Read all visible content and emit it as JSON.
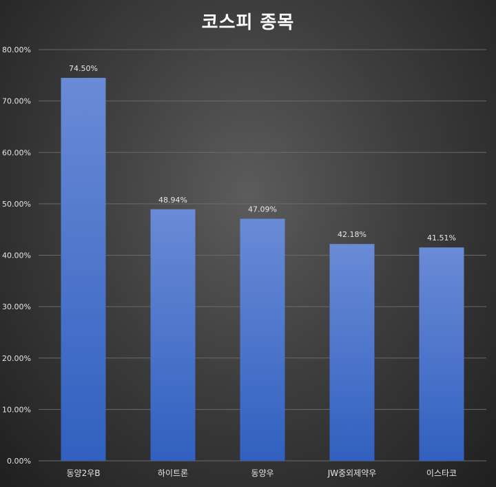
{
  "chart_data": {
    "type": "bar",
    "title": "코스피 종목",
    "categories": [
      "동양2우B",
      "하이트론",
      "동양우",
      "JW중외제약우",
      "이스타코"
    ],
    "values": [
      74.5,
      48.94,
      47.09,
      42.18,
      41.51
    ],
    "data_labels": [
      "74.50%",
      "48.94%",
      "47.09%",
      "42.18%",
      "41.51%"
    ],
    "ylim": [
      0,
      80
    ],
    "yticks": [
      0,
      10,
      20,
      30,
      40,
      50,
      60,
      70,
      80
    ],
    "ytick_labels": [
      "0.00%",
      "10.00%",
      "20.00%",
      "30.00%",
      "40.00%",
      "50.00%",
      "60.00%",
      "70.00%",
      "80.00%"
    ],
    "grid": true,
    "legend": "none",
    "colors": {
      "bar_top": "#6a8bd6",
      "bar_bottom": "#3160c0",
      "text": "#e6e6e6",
      "title": "#ffffff"
    }
  }
}
